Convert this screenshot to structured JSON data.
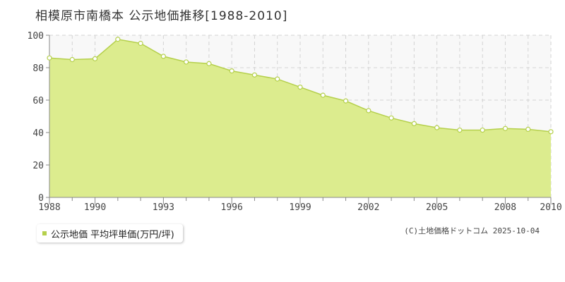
{
  "title": "相模原市南橋本 公示地価推移[1988-2010]",
  "legend_label": "公示地価 平均坪単価(万円/坪)",
  "credit": "(C)土地価格ドットコム 2025-10-04",
  "colors": {
    "area_fill": "#dcec8e",
    "line": "#b5d04c",
    "marker_fill": "#ffffff",
    "plot_bg": "#f8f8f8",
    "grid": "#d3d3d3",
    "axis": "#888888",
    "legend_swatch": "#b5d04c"
  },
  "chart_data": {
    "type": "area",
    "title": "相模原市南橋本 公示地価推移[1988-2010]",
    "xlim": [
      1988,
      2010
    ],
    "ylim": [
      0,
      100
    ],
    "grid": true,
    "x_ticks": [
      1988,
      1990,
      1993,
      1996,
      1999,
      2002,
      2005,
      2008,
      2010
    ],
    "y_ticks": [
      0,
      20,
      40,
      60,
      80,
      100
    ],
    "series": [
      {
        "name": "公示地価 平均坪単価(万円/坪)",
        "x": [
          1988,
          1989,
          1990,
          1991,
          1992,
          1993,
          1994,
          1995,
          1996,
          1997,
          1998,
          1999,
          2000,
          2001,
          2002,
          2003,
          2004,
          2005,
          2006,
          2007,
          2008,
          2009,
          2010
        ],
        "values": [
          86,
          85,
          85.5,
          97.5,
          95,
          87,
          83.5,
          82.5,
          78,
          75.5,
          73,
          68,
          63,
          59.5,
          53.5,
          49,
          45.5,
          43,
          41.5,
          41.5,
          42.5,
          42,
          40.5
        ]
      }
    ]
  }
}
